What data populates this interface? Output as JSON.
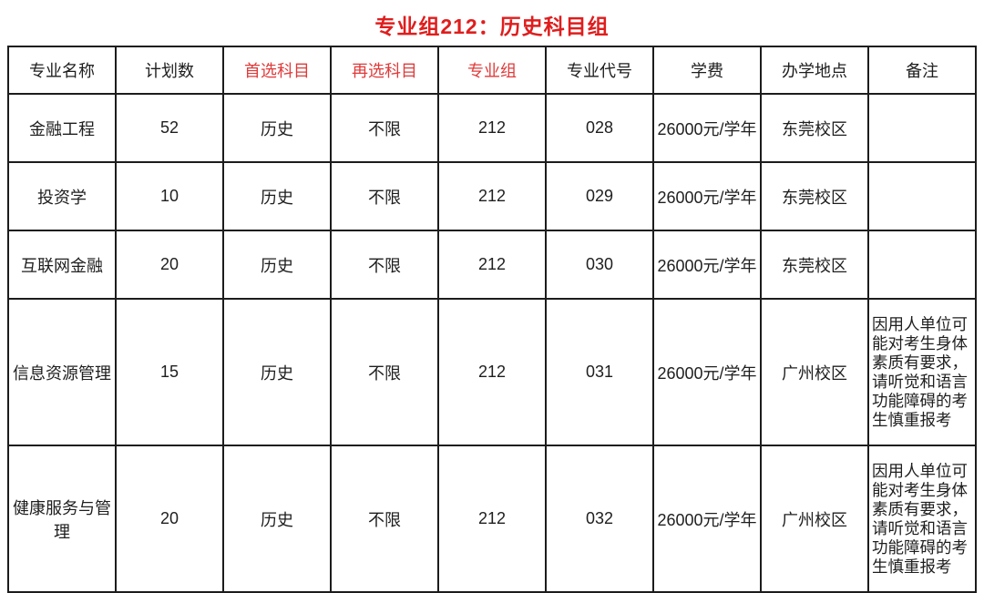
{
  "title": "专业组212：历史科目组",
  "colors": {
    "title_red": "#e01d1d",
    "header_red": "#e03a3a",
    "text": "#1e1e1e",
    "border": "#1c1c1c",
    "background": "#ffffff"
  },
  "table": {
    "columns": [
      {
        "key": "major-name",
        "label": "专业名称",
        "red": false
      },
      {
        "key": "plan-count",
        "label": "计划数",
        "red": false
      },
      {
        "key": "first-subject",
        "label": "首选科目",
        "red": true
      },
      {
        "key": "second-subject",
        "label": "再选科目",
        "red": true
      },
      {
        "key": "major-group",
        "label": "专业组",
        "red": true
      },
      {
        "key": "major-code",
        "label": "专业代号",
        "red": false
      },
      {
        "key": "tuition",
        "label": "学费",
        "red": false
      },
      {
        "key": "campus",
        "label": "办学地点",
        "red": false
      },
      {
        "key": "remarks",
        "label": "备注",
        "red": false
      }
    ],
    "rows": [
      {
        "tall": false,
        "cells": [
          "金融工程",
          "52",
          "历史",
          "不限",
          "212",
          "028",
          "26000元/学年",
          "东莞校区",
          ""
        ]
      },
      {
        "tall": false,
        "cells": [
          "投资学",
          "10",
          "历史",
          "不限",
          "212",
          "029",
          "26000元/学年",
          "东莞校区",
          ""
        ]
      },
      {
        "tall": false,
        "cells": [
          "互联网金融",
          "20",
          "历史",
          "不限",
          "212",
          "030",
          "26000元/学年",
          "东莞校区",
          ""
        ]
      },
      {
        "tall": true,
        "cells": [
          "信息资源管理",
          "15",
          "历史",
          "不限",
          "212",
          "031",
          "26000元/学年",
          "广州校区",
          "因用人单位可能对考生身体素质有要求，请听觉和语言功能障碍的考生慎重报考"
        ]
      },
      {
        "tall": true,
        "cells": [
          "健康服务与管理",
          "20",
          "历史",
          "不限",
          "212",
          "032",
          "26000元/学年",
          "广州校区",
          "因用人单位可能对考生身体素质有要求，请听觉和语言功能障碍的考生慎重报考"
        ]
      }
    ]
  }
}
